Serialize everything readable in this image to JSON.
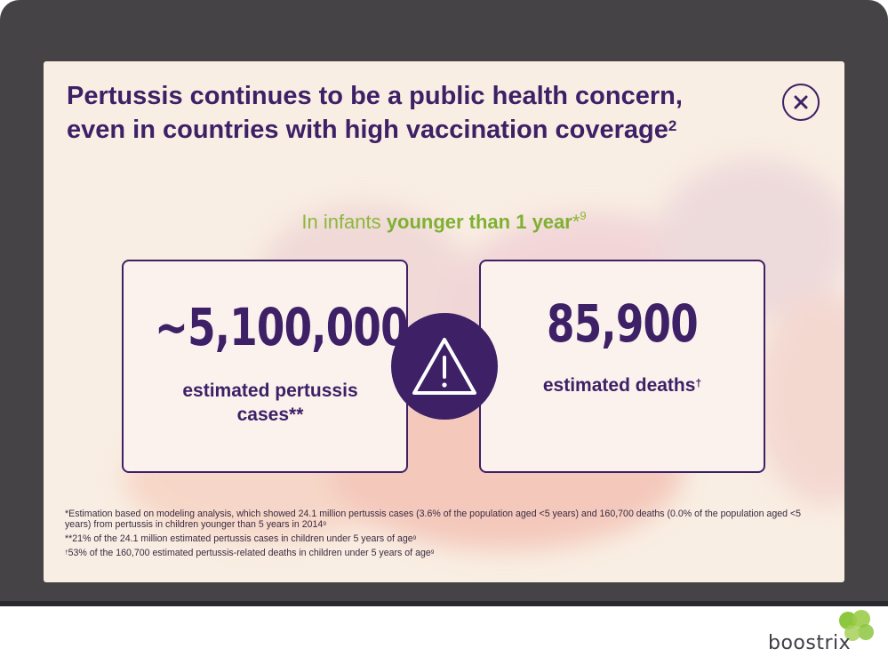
{
  "header": {
    "title_line1": "Pertussis continues to be a public health concern,",
    "title_line2": "even in countries with high vaccination coverage",
    "title_ref": "2"
  },
  "close_button": {
    "icon": "close-icon"
  },
  "subtitle": {
    "prefix": "In infants",
    "emphasis": "younger than 1 year",
    "suffix": "*",
    "ref": "9"
  },
  "stats": {
    "cases": {
      "value": "~5,100,000",
      "label_line1": "estimated pertussis",
      "label_line2": "cases**"
    },
    "deaths": {
      "value": "85,900",
      "label": "estimated deaths",
      "label_mark": "†"
    },
    "divider_icon": "warning-triangle-icon"
  },
  "footnotes": {
    "note1": "*Estimation based on modeling analysis, which showed 24.1 million pertussis cases (3.6% of the population aged <5 years) and 160,700 deaths (0.0% of the population aged <5 years) from pertussis in children younger than 5 years in 2014",
    "note1_ref": "9",
    "note2": "**21% of the 24.1 million estimated pertussis cases in children under 5 years of age",
    "note2_ref": "9",
    "note3_mark": "†",
    "note3": "53% of the 160,700 estimated pertussis-related deaths in children under 5 years of age",
    "note3_ref": "9"
  },
  "brand": {
    "name": "boostrix",
    "logo_icon": "leaf-cluster-icon"
  },
  "colors": {
    "primary": "#3d2066",
    "accent_green": "#7fb032",
    "panel_background": "#f9eee3",
    "device_frame": "#454345"
  }
}
